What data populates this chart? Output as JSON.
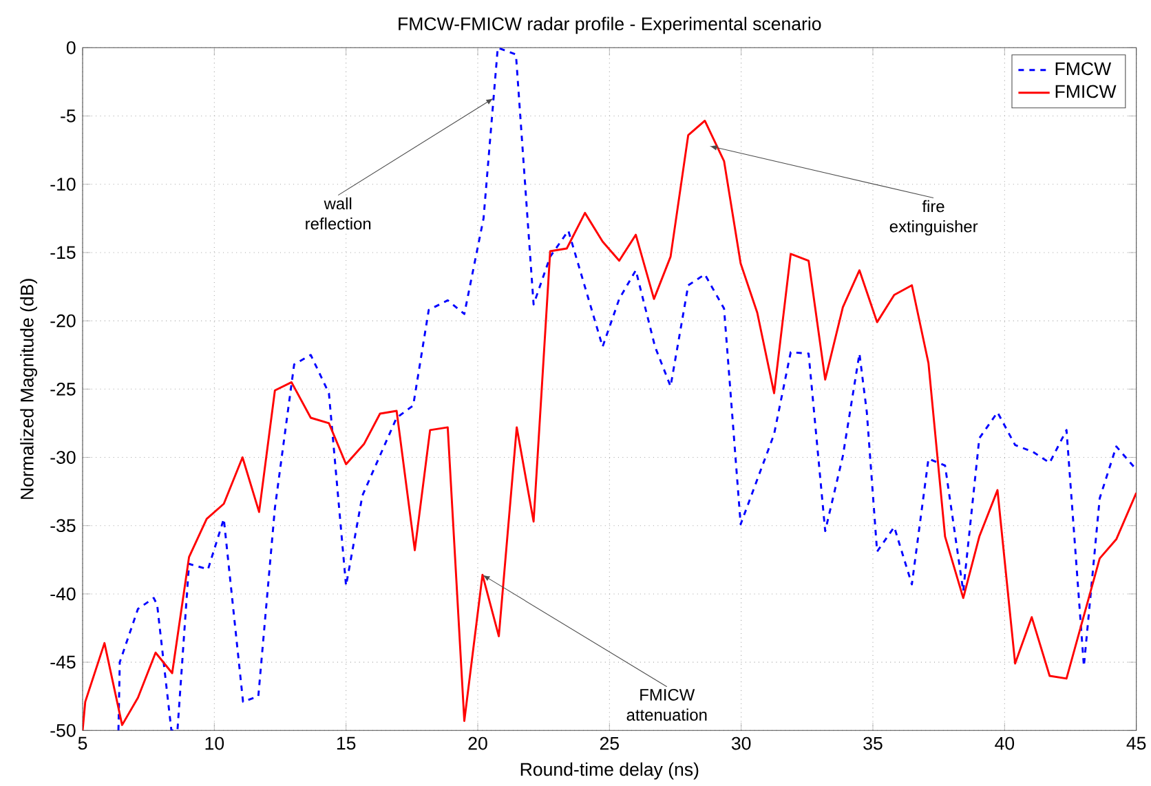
{
  "chart_data": {
    "type": "line",
    "title": "FMCW-FMICW radar profile - Experimental scenario",
    "xlabel": "Round-time delay (ns)",
    "ylabel": "Normalized Magnitude (dB)",
    "xlim": [
      5,
      45
    ],
    "ylim": [
      -50,
      0
    ],
    "xticks": [
      5,
      10,
      15,
      20,
      25,
      30,
      35,
      40,
      45
    ],
    "yticks": [
      -50,
      -45,
      -40,
      -35,
      -30,
      -25,
      -20,
      -15,
      -10,
      -5,
      0
    ],
    "grid": true,
    "legend": "top right",
    "marker": "none",
    "series": [
      {
        "name": "FMCW",
        "color": "#0000ff",
        "line_style": "dashed",
        "x": [
          6.36,
          6.41,
          7.1,
          7.7,
          7.83,
          8.37,
          8.6,
          9.04,
          9.76,
          10.36,
          11.09,
          11.67,
          12.03,
          12.3,
          13.03,
          13.66,
          14.35,
          15.0,
          15.62,
          16.92,
          17.55,
          18.14,
          18.86,
          19.49,
          20.22,
          20.76,
          21.45,
          22.12,
          22.75,
          23.44,
          24.74,
          25.37,
          26.0,
          26.73,
          27.32,
          27.99,
          28.62,
          29.35,
          29.98,
          31.25,
          31.88,
          32.56,
          33.19,
          33.86,
          34.49,
          34.77,
          35.16,
          35.81,
          36.48,
          37.11,
          37.74,
          38.43,
          39.04,
          39.73,
          40.4,
          41.08,
          41.71,
          42.35,
          43.01,
          43.61,
          44.24,
          45.0
        ],
        "values": [
          -50,
          -45.0,
          -41.1,
          -40.3,
          -40.8,
          -50,
          -50,
          -37.8,
          -38.2,
          -34.5,
          -47.9,
          -47.5,
          -39.6,
          -33.7,
          -23.2,
          -22.5,
          -25.3,
          -39.4,
          -32.8,
          -27.1,
          -26.2,
          -19.2,
          -18.5,
          -19.5,
          -12.5,
          0,
          -0.5,
          -18.8,
          -15.3,
          -13.4,
          -21.9,
          -18.4,
          -16.3,
          -21.9,
          -24.8,
          -17.4,
          -16.6,
          -19.1,
          -34.9,
          -28.3,
          -22.3,
          -22.4,
          -35.4,
          -29.9,
          -22.4,
          -26.7,
          -36.9,
          -35.1,
          -39.3,
          -30.1,
          -30.6,
          -39.8,
          -28.6,
          -26.7,
          -29.1,
          -29.6,
          -30.4,
          -28.0,
          -45.3,
          -33.0,
          -29.2,
          -30.9
        ]
      },
      {
        "name": "FMICW",
        "color": "#ff0000",
        "line_style": "solid",
        "x": [
          5.0,
          5.1,
          5.83,
          6.5,
          7.1,
          7.77,
          8.4,
          9.04,
          9.71,
          10.36,
          11.07,
          11.7,
          12.3,
          12.93,
          13.66,
          14.35,
          15.0,
          15.69,
          16.29,
          16.92,
          17.61,
          18.19,
          18.86,
          19.49,
          20.18,
          20.8,
          21.48,
          22.12,
          22.75,
          23.38,
          24.07,
          24.74,
          25.37,
          26.0,
          26.69,
          27.32,
          27.99,
          28.62,
          29.35,
          29.98,
          30.61,
          31.25,
          31.88,
          32.56,
          33.19,
          33.86,
          34.49,
          35.16,
          35.81,
          36.48,
          37.11,
          37.74,
          38.43,
          39.04,
          39.73,
          40.4,
          41.03,
          41.71,
          42.35,
          43.61,
          44.24,
          45.0
        ],
        "values": [
          -50,
          -47.9,
          -43.6,
          -49.6,
          -47.6,
          -44.3,
          -45.8,
          -37.3,
          -34.5,
          -33.4,
          -30.0,
          -34.0,
          -25.1,
          -24.5,
          -27.1,
          -27.5,
          -30.5,
          -29.0,
          -26.8,
          -26.6,
          -36.8,
          -28.0,
          -27.8,
          -49.3,
          -38.6,
          -43.1,
          -27.8,
          -34.7,
          -14.9,
          -14.7,
          -12.1,
          -14.2,
          -15.6,
          -13.7,
          -18.4,
          -15.3,
          -6.4,
          -5.35,
          -8.3,
          -15.8,
          -19.4,
          -25.3,
          -15.1,
          -15.6,
          -24.3,
          -19.0,
          -16.3,
          -20.1,
          -18.1,
          -17.4,
          -23.1,
          -35.8,
          -40.3,
          -35.8,
          -32.4,
          -45.1,
          -41.7,
          -46.0,
          -46.2,
          -37.4,
          -36.0,
          -32.6
        ]
      }
    ],
    "annotations": [
      {
        "text": "wall reflection",
        "x": 20.6,
        "y": -3.7
      },
      {
        "text": "fire extinguisher",
        "x": 28.8,
        "y": -7.2
      },
      {
        "text": "FMICW attenuation",
        "x": 20.18,
        "y": -38.6
      }
    ]
  }
}
